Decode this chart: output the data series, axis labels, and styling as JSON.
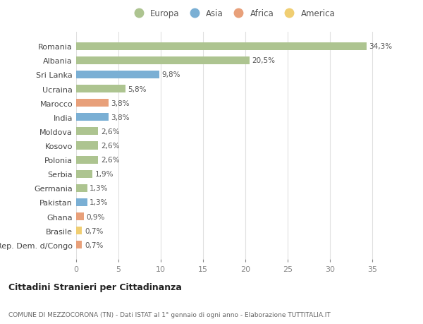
{
  "countries": [
    "Romania",
    "Albania",
    "Sri Lanka",
    "Ucraina",
    "Marocco",
    "India",
    "Moldova",
    "Kosovo",
    "Polonia",
    "Serbia",
    "Germania",
    "Pakistan",
    "Ghana",
    "Brasile",
    "Rep. Dem. d/Congo"
  ],
  "values": [
    34.3,
    20.5,
    9.8,
    5.8,
    3.8,
    3.8,
    2.6,
    2.6,
    2.6,
    1.9,
    1.3,
    1.3,
    0.9,
    0.7,
    0.7
  ],
  "labels": [
    "34,3%",
    "20,5%",
    "9,8%",
    "5,8%",
    "3,8%",
    "3,8%",
    "2,6%",
    "2,6%",
    "2,6%",
    "1,9%",
    "1,3%",
    "1,3%",
    "0,9%",
    "0,7%",
    "0,7%"
  ],
  "continents": [
    "Europa",
    "Europa",
    "Asia",
    "Europa",
    "Africa",
    "Asia",
    "Europa",
    "Europa",
    "Europa",
    "Europa",
    "Europa",
    "Asia",
    "Africa",
    "America",
    "Africa"
  ],
  "continent_colors": {
    "Europa": "#adc490",
    "Asia": "#7aafd4",
    "Africa": "#e8a07a",
    "America": "#f0ce72"
  },
  "legend_order": [
    "Europa",
    "Asia",
    "Africa",
    "America"
  ],
  "title": "Cittadini Stranieri per Cittadinanza",
  "subtitle": "COMUNE DI MEZZOCORONA (TN) - Dati ISTAT al 1° gennaio di ogni anno - Elaborazione TUTTITALIA.IT",
  "xlim": [
    0,
    37
  ],
  "xticks": [
    0,
    5,
    10,
    15,
    20,
    25,
    30,
    35
  ],
  "background_color": "#ffffff",
  "grid_color": "#e0e0e0",
  "bar_height": 0.55
}
